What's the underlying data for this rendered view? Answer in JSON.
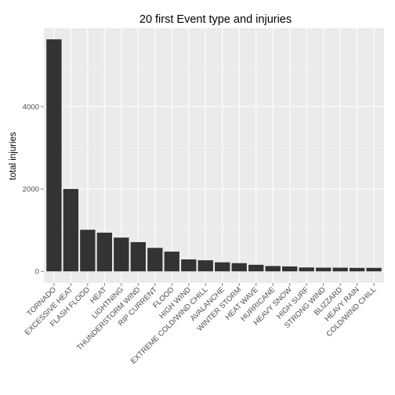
{
  "chart_data": {
    "type": "bar",
    "title": "20 first Event type and injuries",
    "xlabel": "",
    "ylabel": "total injuries",
    "categories": [
      "TORNADO",
      "EXCESSIVE HEAT",
      "FLASH FLOOD",
      "HEAT",
      "LIGHTNING",
      "THUNDERSTORM WIND",
      "RIP CURRENT",
      "FLOOD",
      "HIGH WIND",
      "EXTREME COLD/WIND CHILL",
      "AVALANCHE",
      "WINTER STORM",
      "HEAT WAVE",
      "HURRICANE",
      "HEAVY SNOW",
      "HIGH SURF",
      "STRONG WIND",
      "BLIZZARD",
      "HEAVY RAIN",
      "COLD/WIND CHILL"
    ],
    "values": [
      5630,
      2000,
      1010,
      940,
      820,
      710,
      570,
      480,
      290,
      270,
      220,
      200,
      160,
      130,
      120,
      95,
      90,
      90,
      85,
      85
    ],
    "yticks": [
      0,
      2000,
      4000
    ],
    "ylim": [
      -280,
      5900
    ],
    "grid": true,
    "colors": {
      "panel": "#ebebeb",
      "bar": "#333333",
      "grid_major": "#ffffff"
    }
  }
}
